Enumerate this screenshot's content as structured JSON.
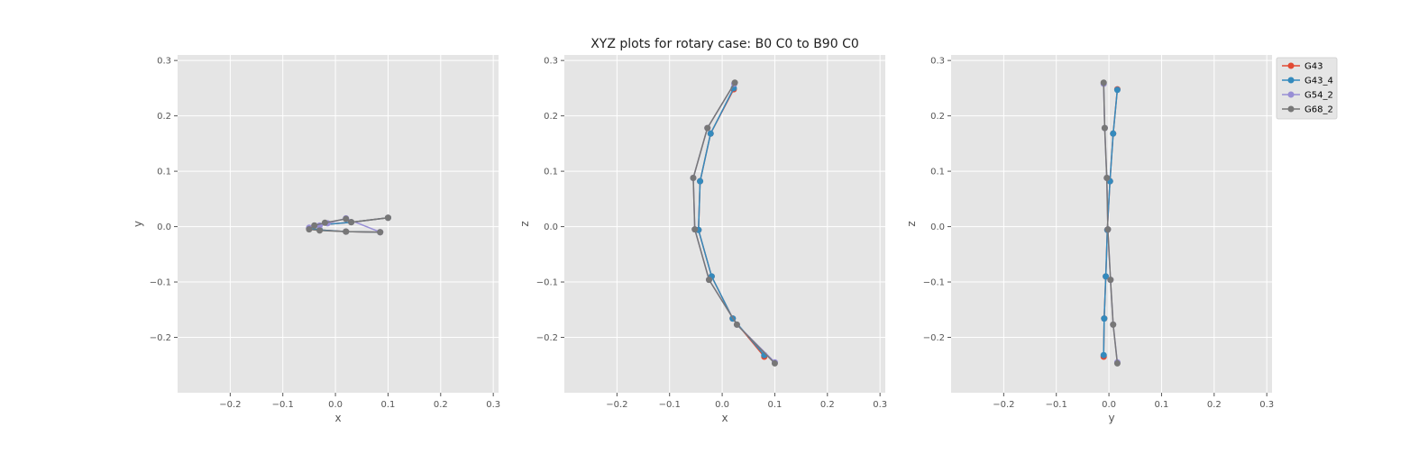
{
  "figure": {
    "title": "XYZ plots for rotary case: B0 C0 to B90 C0"
  },
  "legend": {
    "placement": "upper-right-outside",
    "entries": [
      "G43",
      "G43_4",
      "G54_2",
      "G68_2"
    ]
  },
  "colors": {
    "background": "#e5e5e5",
    "grid": "#ffffff",
    "G43": "#e24a33",
    "G43_4": "#348abd",
    "G54_2": "#988ed5",
    "G68_2": "#777777"
  },
  "chart_data": [
    {
      "type": "line",
      "xlabel": "x",
      "ylabel": "y",
      "xlim": [
        -0.3,
        0.31
      ],
      "ylim": [
        -0.3,
        0.31
      ],
      "xticks": [
        -0.2,
        -0.1,
        0.0,
        0.1,
        0.2,
        0.3
      ],
      "yticks": [
        -0.2,
        -0.1,
        0.0,
        0.1,
        0.2,
        0.3
      ],
      "tick_labels_x": [
        "−0.2",
        "−0.1",
        "0.0",
        "0.1",
        "0.2",
        "0.3"
      ],
      "tick_labels_y": [
        "−0.2",
        "−0.1",
        "0.0",
        "0.1",
        "0.2",
        "0.3"
      ],
      "grid": true,
      "series": [
        {
          "name": "G43",
          "x": [
            0.1,
            0.03,
            -0.04,
            -0.05,
            -0.03,
            0.02,
            0.085
          ],
          "y": [
            0.016,
            0.008,
            0.002,
            -0.003,
            -0.006,
            -0.009,
            -0.01
          ]
        },
        {
          "name": "G43_4",
          "x": [
            0.1,
            0.03,
            -0.04,
            -0.05,
            -0.03,
            0.02,
            0.085
          ],
          "y": [
            0.016,
            0.008,
            0.002,
            -0.003,
            -0.006,
            -0.009,
            -0.01
          ]
        },
        {
          "name": "G54_2",
          "x": [
            -0.05,
            -0.03,
            -0.015,
            0.02,
            0.085
          ],
          "y": [
            -0.002,
            0.002,
            0.006,
            0.015,
            -0.01
          ]
        },
        {
          "name": "G68_2",
          "x": [
            0.1,
            0.03,
            0.02,
            -0.02,
            -0.04,
            -0.05,
            -0.03,
            0.02,
            0.085
          ],
          "y": [
            0.016,
            0.008,
            0.014,
            0.007,
            0.002,
            -0.005,
            -0.007,
            -0.009,
            -0.01
          ]
        }
      ]
    },
    {
      "type": "line",
      "xlabel": "x",
      "ylabel": "z",
      "xlim": [
        -0.3,
        0.31
      ],
      "ylim": [
        -0.3,
        0.31
      ],
      "xticks": [
        -0.2,
        -0.1,
        0.0,
        0.1,
        0.2,
        0.3
      ],
      "yticks": [
        -0.2,
        -0.1,
        0.0,
        0.1,
        0.2,
        0.3
      ],
      "tick_labels_x": [
        "−0.2",
        "−0.1",
        "0.0",
        "0.1",
        "0.2",
        "0.3"
      ],
      "tick_labels_y": [
        "−0.2",
        "−0.1",
        "0.0",
        "0.1",
        "0.2",
        "0.3"
      ],
      "grid": true,
      "series": [
        {
          "name": "G43",
          "x": [
            0.022,
            -0.022,
            -0.042,
            -0.045,
            -0.02,
            0.02,
            0.08
          ],
          "y": [
            0.248,
            0.168,
            0.082,
            -0.006,
            -0.09,
            -0.166,
            -0.235
          ]
        },
        {
          "name": "G43_4",
          "x": [
            0.022,
            -0.022,
            -0.042,
            -0.045,
            -0.02,
            0.02,
            0.08
          ],
          "y": [
            0.25,
            0.168,
            0.082,
            -0.006,
            -0.09,
            -0.166,
            -0.232
          ]
        },
        {
          "name": "G54_2",
          "x": [
            0.023,
            -0.028,
            -0.055,
            -0.052,
            -0.025,
            0.028,
            0.1
          ],
          "y": [
            0.258,
            0.178,
            0.088,
            -0.005,
            -0.096,
            -0.177,
            -0.245
          ]
        },
        {
          "name": "G68_2",
          "x": [
            0.024,
            -0.028,
            -0.055,
            -0.052,
            -0.025,
            0.028,
            0.1
          ],
          "y": [
            0.26,
            0.178,
            0.088,
            -0.005,
            -0.096,
            -0.177,
            -0.247
          ]
        }
      ]
    },
    {
      "type": "line",
      "xlabel": "y",
      "ylabel": "z",
      "xlim": [
        -0.3,
        0.31
      ],
      "ylim": [
        -0.3,
        0.31
      ],
      "xticks": [
        -0.2,
        -0.1,
        0.0,
        0.1,
        0.2,
        0.3
      ],
      "yticks": [
        -0.2,
        -0.1,
        0.0,
        0.1,
        0.2,
        0.3
      ],
      "tick_labels_x": [
        "−0.2",
        "−0.1",
        "0.0",
        "0.1",
        "0.2",
        "0.3"
      ],
      "tick_labels_y": [
        "−0.2",
        "−0.1",
        "0.0",
        "0.1",
        "0.2",
        "0.3"
      ],
      "grid": true,
      "series": [
        {
          "name": "G43",
          "x": [
            0.016,
            0.008,
            0.002,
            -0.003,
            -0.006,
            -0.009,
            -0.01
          ],
          "y": [
            0.248,
            0.168,
            0.082,
            -0.006,
            -0.09,
            -0.166,
            -0.235
          ]
        },
        {
          "name": "G43_4",
          "x": [
            0.016,
            0.008,
            0.002,
            -0.003,
            -0.006,
            -0.009,
            -0.01
          ],
          "y": [
            0.247,
            0.168,
            0.082,
            -0.006,
            -0.09,
            -0.166,
            -0.232
          ]
        },
        {
          "name": "G54_2",
          "x": [
            -0.01,
            -0.008,
            -0.004,
            -0.002,
            0.003,
            0.008,
            0.016
          ],
          "y": [
            0.258,
            0.178,
            0.088,
            -0.005,
            -0.096,
            -0.177,
            -0.245
          ]
        },
        {
          "name": "G68_2",
          "x": [
            -0.01,
            -0.008,
            -0.004,
            -0.002,
            0.003,
            0.008,
            0.016
          ],
          "y": [
            0.26,
            0.178,
            0.088,
            -0.005,
            -0.096,
            -0.177,
            -0.247
          ]
        }
      ]
    }
  ]
}
